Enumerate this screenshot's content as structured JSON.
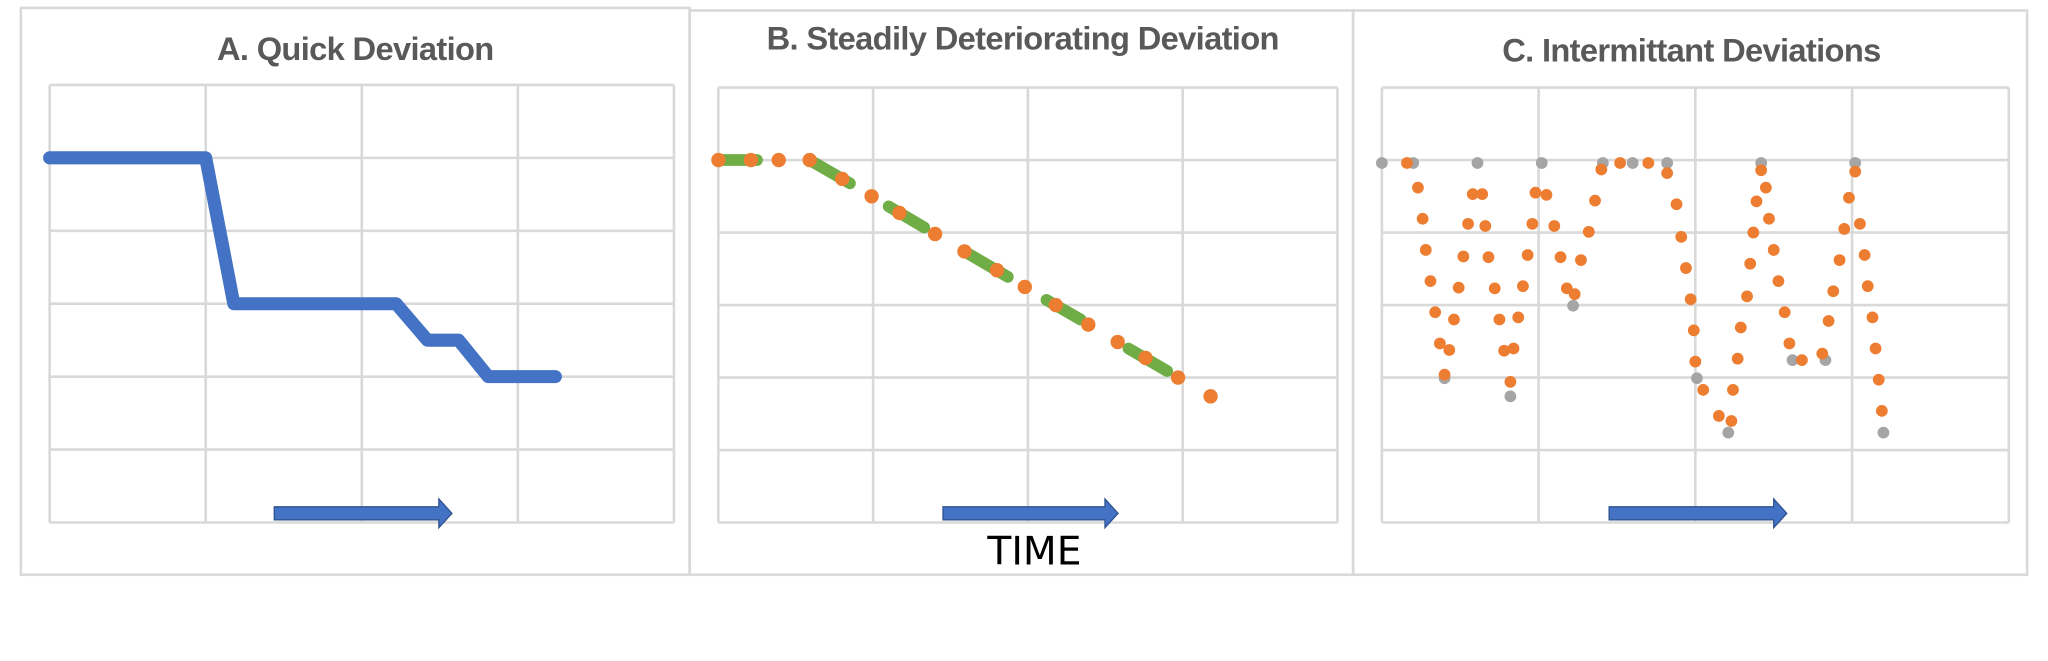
{
  "chart_data": [
    {
      "type": "line",
      "title": "A. Quick Deviation",
      "xlim": [
        0,
        4
      ],
      "xticks": [
        0,
        1,
        2,
        3,
        4
      ],
      "ylim": [
        0,
        6
      ],
      "yticks": [
        0,
        1,
        2,
        3,
        4,
        5,
        6
      ],
      "grid": true,
      "series": [
        {
          "color": "#4472c4",
          "style": "line",
          "x": [
            0,
            1,
            1.18,
            2.22,
            2.42,
            2.62,
            2.81,
            3.24
          ],
          "values": [
            5,
            5,
            3,
            3,
            2.5,
            2.5,
            2,
            2
          ]
        }
      ]
    },
    {
      "type": "line",
      "title": "B. Steadily Deteriorating Deviation",
      "xlabel": "TIME",
      "xlim": [
        0,
        4
      ],
      "xticks": [
        0,
        1,
        2,
        3,
        4
      ],
      "ylim": [
        0,
        6
      ],
      "yticks": [
        0,
        1,
        2,
        3,
        4,
        5,
        6
      ],
      "grid": true,
      "series": [
        {
          "color": "#70ad47",
          "style": "line",
          "x": [
            0,
            0.25,
            null,
            0.59,
            0.85,
            null,
            1.1,
            1.33,
            null,
            1.62,
            1.87,
            null,
            2.12,
            2.34,
            null,
            2.65,
            2.9
          ],
          "values": [
            5,
            5,
            null,
            5,
            4.68,
            null,
            4.36,
            4.07,
            null,
            3.7,
            3.39,
            null,
            3.07,
            2.8,
            null,
            2.4,
            2.09
          ]
        },
        {
          "color": "#ed7d31",
          "style": "dots",
          "x": [
            0,
            0.21,
            0.39,
            0.59,
            0.8,
            0.99,
            1.17,
            1.4,
            1.59,
            1.8,
            1.98,
            2.18,
            2.39,
            2.58,
            2.76,
            2.97,
            3.18
          ],
          "values": [
            5,
            5,
            5,
            5,
            4.74,
            4.5,
            4.27,
            3.98,
            3.74,
            3.48,
            3.25,
            3,
            2.73,
            2.49,
            2.27,
            2,
            1.74
          ]
        }
      ]
    },
    {
      "type": "scatter",
      "title": "C. Intermittant Deviations",
      "xlim": [
        0,
        4
      ],
      "xticks": [
        0,
        1,
        2,
        3,
        4
      ],
      "ylim": [
        0,
        6
      ],
      "yticks": [
        0,
        1,
        2,
        3,
        4,
        5,
        6
      ],
      "grid": true,
      "series": [
        {
          "color": "#a5a5a5",
          "x": [
            0,
            0.2,
            0.4,
            0.61,
            0.82,
            1.02,
            1.22,
            1.41,
            1.6,
            1.82,
            2.01,
            2.21,
            2.42,
            2.62,
            2.83,
            3.02,
            3.2
          ],
          "values": [
            4.96,
            4.96,
            1.99,
            4.96,
            1.74,
            4.96,
            2.99,
            4.96,
            4.96,
            4.96,
            1.99,
            1.24,
            4.96,
            2.24,
            2.24,
            4.96,
            1.24
          ]
        },
        {
          "color": "#ed7d31",
          "x": [
            0.16,
            0.23,
            0.26,
            0.28,
            0.31,
            0.34,
            0.37,
            0.4,
            0.43,
            0.46,
            0.49,
            0.52,
            0.55,
            0.58,
            0.64,
            0.66,
            0.68,
            0.72,
            0.75,
            0.78,
            0.82,
            0.84,
            0.87,
            0.9,
            0.93,
            0.96,
            0.98,
            1.05,
            1.1,
            1.14,
            1.18,
            1.23,
            1.27,
            1.32,
            1.36,
            1.4,
            1.52,
            1.7,
            1.82,
            1.88,
            1.91,
            1.94,
            1.97,
            1.99,
            2,
            2.05,
            2.15,
            2.23,
            2.24,
            2.27,
            2.29,
            2.33,
            2.35,
            2.37,
            2.39,
            2.42,
            2.45,
            2.47,
            2.5,
            2.53,
            2.57,
            2.6,
            2.68,
            2.81,
            2.85,
            2.88,
            2.92,
            2.95,
            2.98,
            3.02,
            3.05,
            3.08,
            3.1,
            3.13,
            3.15,
            3.17,
            3.19
          ],
          "values": [
            4.96,
            4.62,
            4.19,
            3.76,
            3.33,
            2.9,
            2.47,
            2.04,
            2.38,
            2.8,
            3.24,
            3.67,
            4.12,
            4.53,
            4.53,
            4.09,
            3.66,
            3.23,
            2.8,
            2.37,
            1.94,
            2.4,
            2.83,
            3.26,
            3.69,
            4.12,
            4.55,
            4.52,
            4.09,
            3.66,
            3.23,
            3.15,
            3.62,
            4.01,
            4.44,
            4.87,
            4.96,
            4.96,
            4.82,
            4.39,
            3.94,
            3.51,
            3.08,
            2.65,
            2.22,
            1.83,
            1.47,
            1.4,
            1.83,
            2.26,
            2.69,
            3.12,
            3.57,
            4,
            4.43,
            4.86,
            4.62,
            4.19,
            3.76,
            3.33,
            2.9,
            2.47,
            2.24,
            2.33,
            2.78,
            3.19,
            3.62,
            4.05,
            4.48,
            4.84,
            4.12,
            3.69,
            3.26,
            2.83,
            2.4,
            1.97,
            1.54
          ]
        }
      ]
    }
  ]
}
